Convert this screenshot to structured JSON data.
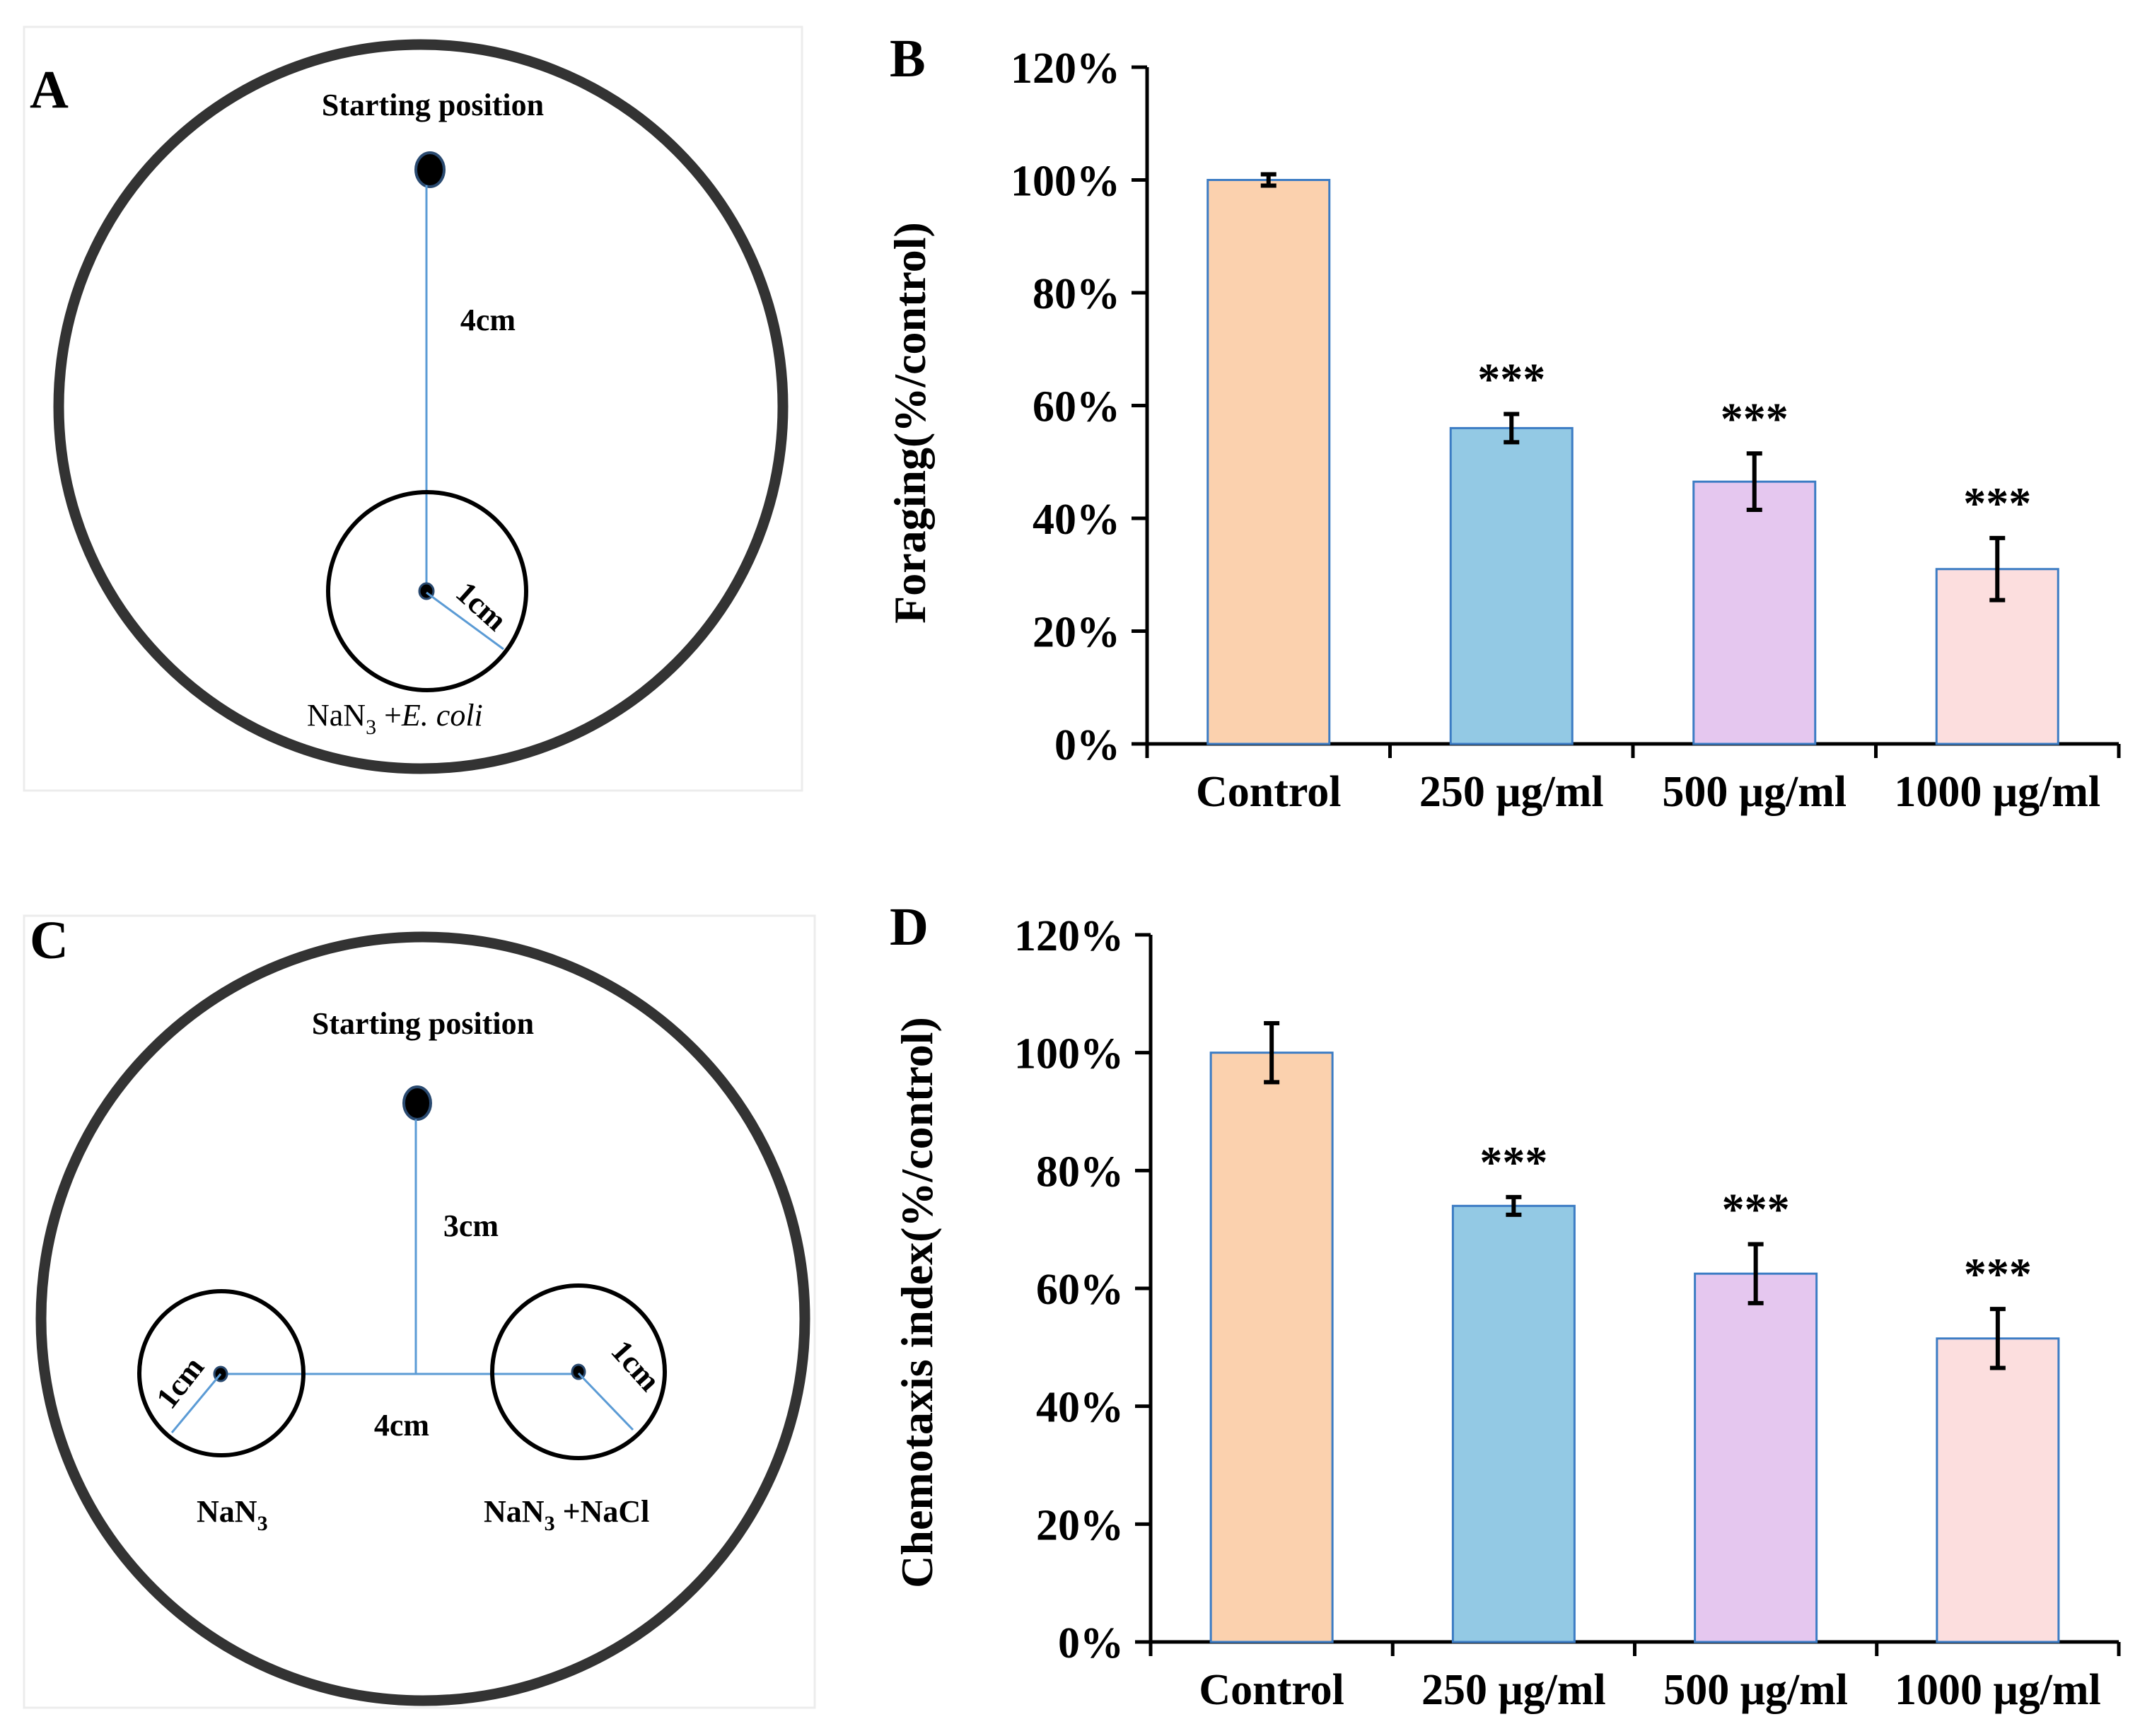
{
  "panels": {
    "A": {
      "letter": "A",
      "start_label": "Starting position",
      "distance_main": "4cm",
      "radius_label": "1cm",
      "target_formula": "NaN",
      "target_sub": "3",
      "target_plus": " +",
      "target_italic": "E. coli"
    },
    "C": {
      "letter": "C",
      "start_label": "Starting position",
      "distance_vertical": "3cm",
      "distance_horizontal": "4cm",
      "radius_left": "1cm",
      "radius_right": "1cm",
      "left_formula": "NaN",
      "left_sub": "3",
      "right_formula": "NaN",
      "right_sub": "3",
      "right_suffix": " +NaCl"
    },
    "B": {
      "letter": "B"
    },
    "D": {
      "letter": "D"
    }
  },
  "colors": {
    "bars": [
      "#fbd1ae",
      "#93c9e4",
      "#e5c7ef",
      "#fcdede"
    ],
    "bar_edge": "#3c7cc4",
    "diagram_line": "#5b9bd5",
    "dish_ring": "#333333"
  },
  "chart_data": [
    {
      "id": "B",
      "type": "bar",
      "categories": [
        "Control",
        "250 μg/ml",
        "500 μg/ml",
        "1000 μg/ml"
      ],
      "values": [
        100,
        56,
        46.5,
        31
      ],
      "errors": [
        1,
        2.5,
        5,
        5.5
      ],
      "significance": [
        "",
        "***",
        "***",
        "***"
      ],
      "ylabel": "Foraging(%/control)",
      "ylim": [
        0,
        120
      ],
      "yticks": [
        0,
        20,
        40,
        60,
        80,
        100,
        120
      ],
      "ytick_labels": [
        "0%",
        "20%",
        "40%",
        "60%",
        "80%",
        "100%",
        "120%"
      ],
      "grid": false
    },
    {
      "id": "D",
      "type": "bar",
      "categories": [
        "Control",
        "250 μg/ml",
        "500 μg/ml",
        "1000 μg/ml"
      ],
      "values": [
        100,
        74,
        62.5,
        51.5
      ],
      "errors": [
        5,
        1.5,
        5,
        5
      ],
      "significance": [
        "",
        "***",
        "***",
        "***"
      ],
      "ylabel": "Chemotaxis index(%/control)",
      "ylim": [
        0,
        120
      ],
      "yticks": [
        0,
        20,
        40,
        60,
        80,
        100,
        120
      ],
      "ytick_labels": [
        "0%",
        "20%",
        "40%",
        "60%",
        "80%",
        "100%",
        "120%"
      ],
      "grid": false
    }
  ]
}
